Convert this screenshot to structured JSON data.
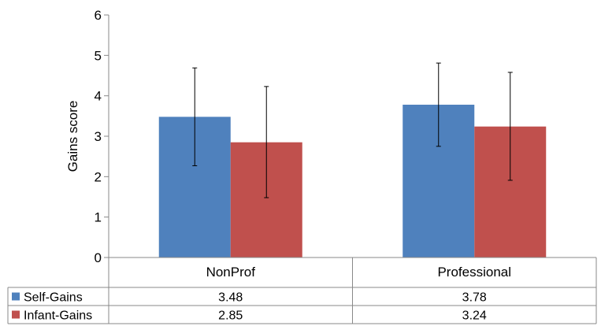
{
  "chart_data": {
    "type": "bar",
    "ylabel": "Gains score",
    "ylim": [
      0,
      6
    ],
    "yticks": [
      0,
      1,
      2,
      3,
      4,
      5,
      6
    ],
    "categories": [
      "NonProf",
      "Professional"
    ],
    "series": [
      {
        "name": "Self-Gains",
        "color": "#4F81BD",
        "values": [
          3.48,
          3.78
        ],
        "value_labels": [
          "3.48",
          "3.78"
        ],
        "error_low": [
          2.27,
          2.75
        ],
        "error_high": [
          4.69,
          4.81
        ]
      },
      {
        "name": "Infant-Gains",
        "color": "#C0504D",
        "values": [
          2.85,
          3.24
        ],
        "value_labels": [
          "2.85",
          "3.24"
        ],
        "error_low": [
          1.48,
          1.91
        ],
        "error_high": [
          4.23,
          4.58
        ]
      }
    ],
    "legend": "data-table-left",
    "grid": false,
    "data_table": true
  }
}
